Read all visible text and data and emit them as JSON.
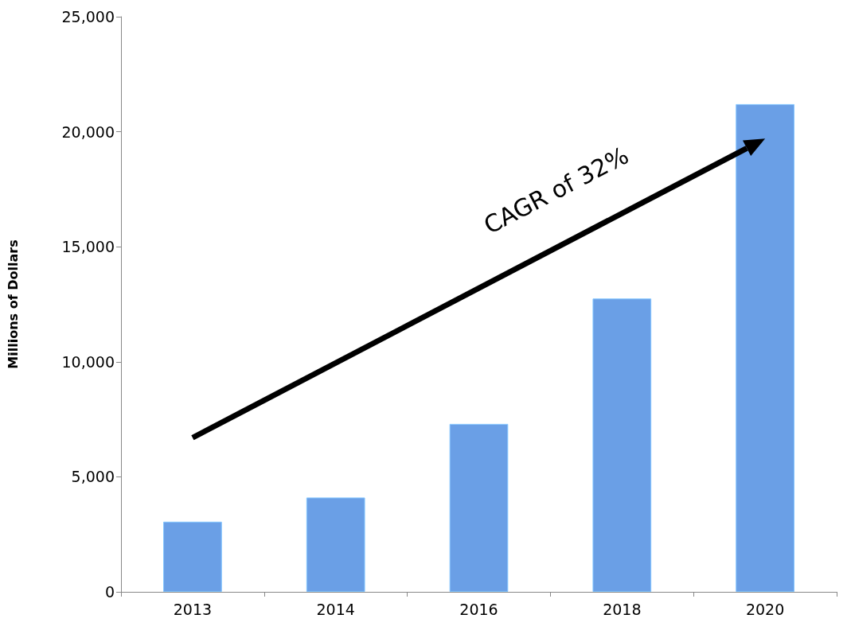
{
  "chart_data": {
    "type": "bar",
    "ylabel": "Millions of Dollars",
    "categories": [
      "2013",
      "2014",
      "2016",
      "2018",
      "2020"
    ],
    "values": [
      3050,
      4100,
      7300,
      12750,
      21200
    ],
    "color": "#6a9fe6",
    "ylim": [
      0,
      25000
    ],
    "yticks": [
      0,
      {
        "value": 5000,
        "label": "5,000"
      },
      {
        "value": 10000,
        "label": "10,000"
      },
      {
        "value": 15000,
        "label": "15,000"
      },
      {
        "value": 20000,
        "label": "20,000"
      },
      {
        "value": 25000,
        "label": "25,000"
      }
    ],
    "grid": false,
    "annotations": [
      "CAGR of 32%"
    ]
  }
}
